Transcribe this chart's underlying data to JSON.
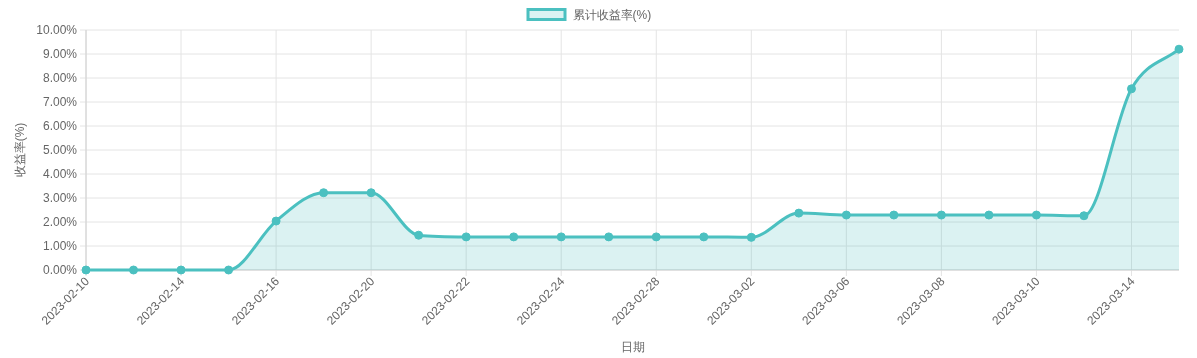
{
  "chart_data": {
    "type": "area",
    "ylabel": "收益率(%)",
    "xlabel": "日期",
    "categories": [
      "2023-02-10",
      null,
      "2023-02-14",
      null,
      "2023-02-16",
      null,
      "2023-02-20",
      null,
      "2023-02-22",
      null,
      "2023-02-24",
      null,
      "2023-02-28",
      null,
      "2023-03-02",
      null,
      "2023-03-06",
      null,
      "2023-03-08",
      null,
      "2023-03-10",
      null,
      "2023-03-14",
      null
    ],
    "series": [
      {
        "name": "累计收益率(%)",
        "color": "#4bc0c0",
        "values": [
          0,
          0,
          0,
          0,
          2.04,
          3.22,
          3.22,
          1.45,
          1.38,
          1.38,
          1.38,
          1.38,
          1.38,
          1.38,
          1.36,
          2.37,
          2.29,
          2.29,
          2.29,
          2.29,
          2.29,
          2.26,
          7.55,
          9.2
        ]
      }
    ],
    "ylim": [
      0,
      10
    ],
    "yticks": [
      {
        "value": 0,
        "label": "0.00%"
      },
      {
        "value": 1,
        "label": "1.00%"
      },
      {
        "value": 2,
        "label": "2.00%"
      },
      {
        "value": 3,
        "label": "3.00%"
      },
      {
        "value": 4,
        "label": "4.00%"
      },
      {
        "value": 5,
        "label": "5.00%"
      },
      {
        "value": 6,
        "label": "6.00%"
      },
      {
        "value": 7,
        "label": "7.00%"
      },
      {
        "value": 8,
        "label": "8.00%"
      },
      {
        "value": 9,
        "label": "9.00%"
      },
      {
        "value": 10,
        "label": "10.00%"
      }
    ],
    "grid": true,
    "legend": "top",
    "marker": "circle",
    "line_style": "solid"
  }
}
